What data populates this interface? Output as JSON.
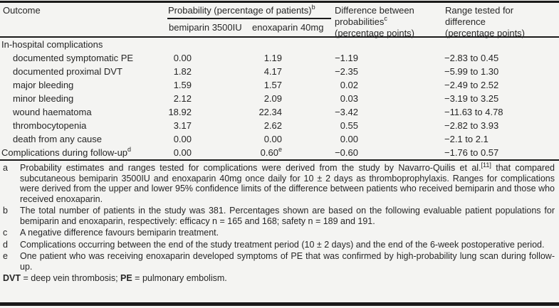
{
  "colors": {
    "background": "#f4f4f2",
    "text": "#262626",
    "rule": "#1a1a1a"
  },
  "table": {
    "header": {
      "outcome": "Outcome",
      "probability_group": "Probability (percentage of patients)",
      "probability_group_sup": "b",
      "sub_col1": "bemiparin 3500IU",
      "sub_col2": "enoxaparin 40mg",
      "difference_lines": [
        "Difference between",
        "probabilities",
        "(percentage points)"
      ],
      "difference_sup": "c",
      "range_lines": [
        "Range tested for",
        "difference",
        "(percentage points)"
      ]
    },
    "rows": [
      {
        "type": "section",
        "outcome": "In-hospital complications"
      },
      {
        "type": "data",
        "indent": true,
        "outcome": "documented symptomatic PE",
        "bemiparin": "0.00",
        "enoxaparin": "1.19",
        "difference": "−1.19",
        "range": "−2.83 to 0.45"
      },
      {
        "type": "data",
        "indent": true,
        "outcome": "documented proximal DVT",
        "bemiparin": "1.82",
        "enoxaparin": "4.17",
        "difference": "−2.35",
        "range": "−5.99 to 1.30"
      },
      {
        "type": "data",
        "indent": true,
        "outcome": "major bleeding",
        "bemiparin": "1.59",
        "enoxaparin": "1.57",
        "difference": "0.02",
        "range": "−2.49 to 2.52"
      },
      {
        "type": "data",
        "indent": true,
        "outcome": "minor bleeding",
        "bemiparin": "2.12",
        "enoxaparin": "2.09",
        "difference": "0.03",
        "range": "−3.19 to 3.25"
      },
      {
        "type": "data",
        "indent": true,
        "outcome": "wound haematoma",
        "bemiparin": "18.92",
        "enoxaparin": "22.34",
        "difference": "−3.42",
        "range": "−11.63 to 4.78"
      },
      {
        "type": "data",
        "indent": true,
        "outcome": "thrombocytopenia",
        "bemiparin": "3.17",
        "enoxaparin": "2.62",
        "difference": "0.55",
        "range": "−2.82 to 3.93"
      },
      {
        "type": "data",
        "indent": true,
        "outcome": "death from any cause",
        "bemiparin": "0.00",
        "enoxaparin": "0.00",
        "difference": "0.00",
        "range": "−2.1 to 2.1"
      },
      {
        "type": "data",
        "indent": false,
        "outcome": "Complications during follow-up",
        "outcome_sup": "d",
        "bemiparin": "0.00",
        "enoxaparin": "0.60",
        "enoxaparin_sup": "e",
        "difference": "−0.60",
        "range": "−1.76 to 0.57"
      }
    ]
  },
  "footnotes": [
    {
      "letter": "a",
      "parts": [
        {
          "t": "Probability estimates and ranges tested for complications were derived from the study by Navarro-Quilis et al."
        },
        {
          "sup": "[11]"
        },
        {
          "t": " that compared subcutaneous bemiparin 3500IU and enoxaparin 40mg once daily for 10 ± 2 days as thromboprophylaxis. Ranges for complications were derived from the upper and lower 95% confidence limits of the difference between patients who received bemiparin and those who received enoxaparin."
        }
      ]
    },
    {
      "letter": "b",
      "parts": [
        {
          "t": "The total number of patients in the study was 381. Percentages shown are based on the following evaluable patient populations for bemiparin and enoxaparin, respectively: efficacy n = 165 and 168; safety n = 189 and 191."
        }
      ]
    },
    {
      "letter": "c",
      "parts": [
        {
          "t": "A negative difference favours bemiparin treatment."
        }
      ]
    },
    {
      "letter": "d",
      "parts": [
        {
          "t": "Complications occurring between the end of the study treatment period (10 ± 2 days) and the end of the 6-week postoperative period."
        }
      ]
    },
    {
      "letter": "e",
      "parts": [
        {
          "t": "One patient who was receiving enoxaparin developed symptoms of PE that was confirmed by high-probability lung scan during follow-up."
        }
      ]
    }
  ],
  "abbreviations": {
    "parts": [
      {
        "b": "DVT"
      },
      {
        "t": " = deep vein thrombosis; "
      },
      {
        "b": "PE"
      },
      {
        "t": " = pulmonary embolism."
      }
    ]
  }
}
